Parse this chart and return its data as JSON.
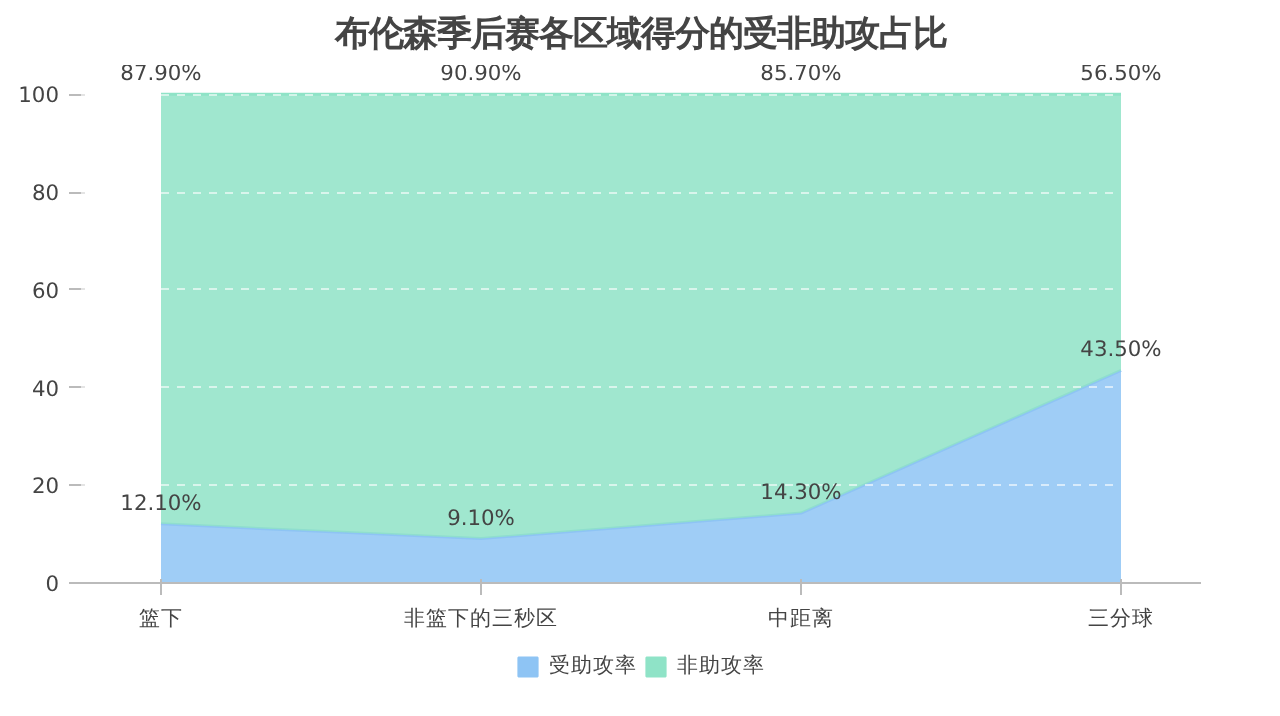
{
  "chart_data": {
    "type": "area",
    "stacked": true,
    "title": "布伦森季后赛各区域得分的受非助攻占比",
    "categories": [
      "篮下",
      "非篮下的三秒区",
      "中距离",
      "三分球"
    ],
    "series": [
      {
        "name": "受助攻率",
        "color": "#8ec4f4",
        "values": [
          12.1,
          9.1,
          14.3,
          43.5
        ],
        "value_labels": [
          "12.10%",
          "9.10%",
          "14.30%",
          "43.50%"
        ]
      },
      {
        "name": "非助攻率",
        "color": "#8fe3c7",
        "values": [
          87.9,
          90.9,
          85.7,
          56.5
        ],
        "value_labels": [
          "87.90%",
          "90.90%",
          "85.70%",
          "56.50%"
        ]
      }
    ],
    "ylim": [
      0,
      100
    ],
    "yticks": [
      0,
      20,
      40,
      60,
      80,
      100
    ],
    "grid": "y",
    "legend": "bottom"
  }
}
